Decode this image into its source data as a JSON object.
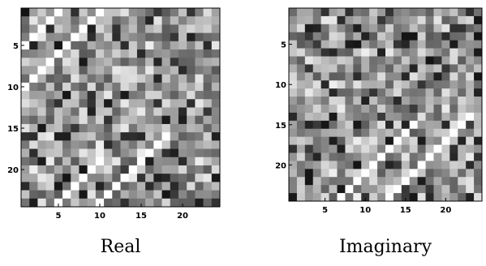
{
  "chart_data": [
    {
      "type": "heatmap",
      "title": "",
      "caption": "Real",
      "xlabel": "",
      "ylabel": "",
      "size": 24,
      "colormap": "gray",
      "x_ticks": [
        5,
        10,
        15,
        20
      ],
      "y_ticks": [
        5,
        10,
        15,
        20
      ],
      "xlim": [
        0.5,
        24.5
      ],
      "ylim": [
        0.5,
        24.5
      ],
      "y_axis_direction": "top-to-bottom",
      "bright_diagonals": [
        {
          "description": "white band from (row 5, col 1) up to (row 1, col 5)",
          "cells": [
            [
              5,
              1
            ],
            [
              4,
              2
            ],
            [
              3,
              3
            ],
            [
              2,
              4
            ],
            [
              1,
              5
            ]
          ]
        },
        {
          "description": "white band from (row 10, col 1) up to (row 1, col 10)",
          "cells": [
            [
              10,
              1
            ],
            [
              9,
              2
            ],
            [
              8,
              3
            ],
            [
              7,
              4
            ],
            [
              6,
              5
            ],
            [
              5,
              6
            ],
            [
              4,
              7
            ],
            [
              3,
              8
            ],
            [
              2,
              9
            ],
            [
              1,
              10
            ]
          ]
        },
        {
          "description": "white band from (row 24, col 5) up to (row 19, col 10)",
          "cells": [
            [
              24,
              5
            ],
            [
              23,
              6
            ],
            [
              22,
              7
            ],
            [
              21,
              8
            ],
            [
              20,
              9
            ],
            [
              19,
              10
            ]
          ]
        },
        {
          "description": "white band from (row 24, col 10) up to (row 16, col 18)",
          "cells": [
            [
              24,
              10
            ],
            [
              23,
              11
            ],
            [
              22,
              12
            ],
            [
              21,
              13
            ],
            [
              20,
              14
            ],
            [
              19,
              15
            ],
            [
              18,
              16
            ],
            [
              17,
              17
            ],
            [
              16,
              18
            ]
          ]
        }
      ],
      "background": "random mid-gray noise"
    },
    {
      "type": "heatmap",
      "title": "",
      "caption": "Imaginary",
      "xlabel": "",
      "ylabel": "",
      "size": 24,
      "colormap": "gray",
      "x_ticks": [
        5,
        10,
        15,
        20
      ],
      "y_ticks": [
        5,
        10,
        15,
        20
      ],
      "xlim": [
        0.5,
        24.5
      ],
      "ylim": [
        0.5,
        24.5
      ],
      "y_axis_direction": "top-to-bottom",
      "bright_diagonals": [
        {
          "description": "white band from (row 24, col 7) up to (row 15, col 16)",
          "cells": [
            [
              24,
              7
            ],
            [
              23,
              8
            ],
            [
              22,
              9
            ],
            [
              21,
              10
            ],
            [
              20,
              11
            ],
            [
              19,
              12
            ],
            [
              18,
              13
            ],
            [
              17,
              14
            ],
            [
              16,
              15
            ],
            [
              15,
              16
            ]
          ]
        },
        {
          "description": "white band from (row 24, col 13) up to (row 14, col 23)",
          "cells": [
            [
              24,
              13
            ],
            [
              23,
              14
            ],
            [
              22,
              15
            ],
            [
              21,
              16
            ],
            [
              20,
              17
            ],
            [
              19,
              18
            ],
            [
              18,
              19
            ],
            [
              17,
              20
            ],
            [
              16,
              21
            ],
            [
              15,
              22
            ],
            [
              14,
              23
            ]
          ]
        }
      ],
      "background": "random mid-gray noise"
    }
  ]
}
